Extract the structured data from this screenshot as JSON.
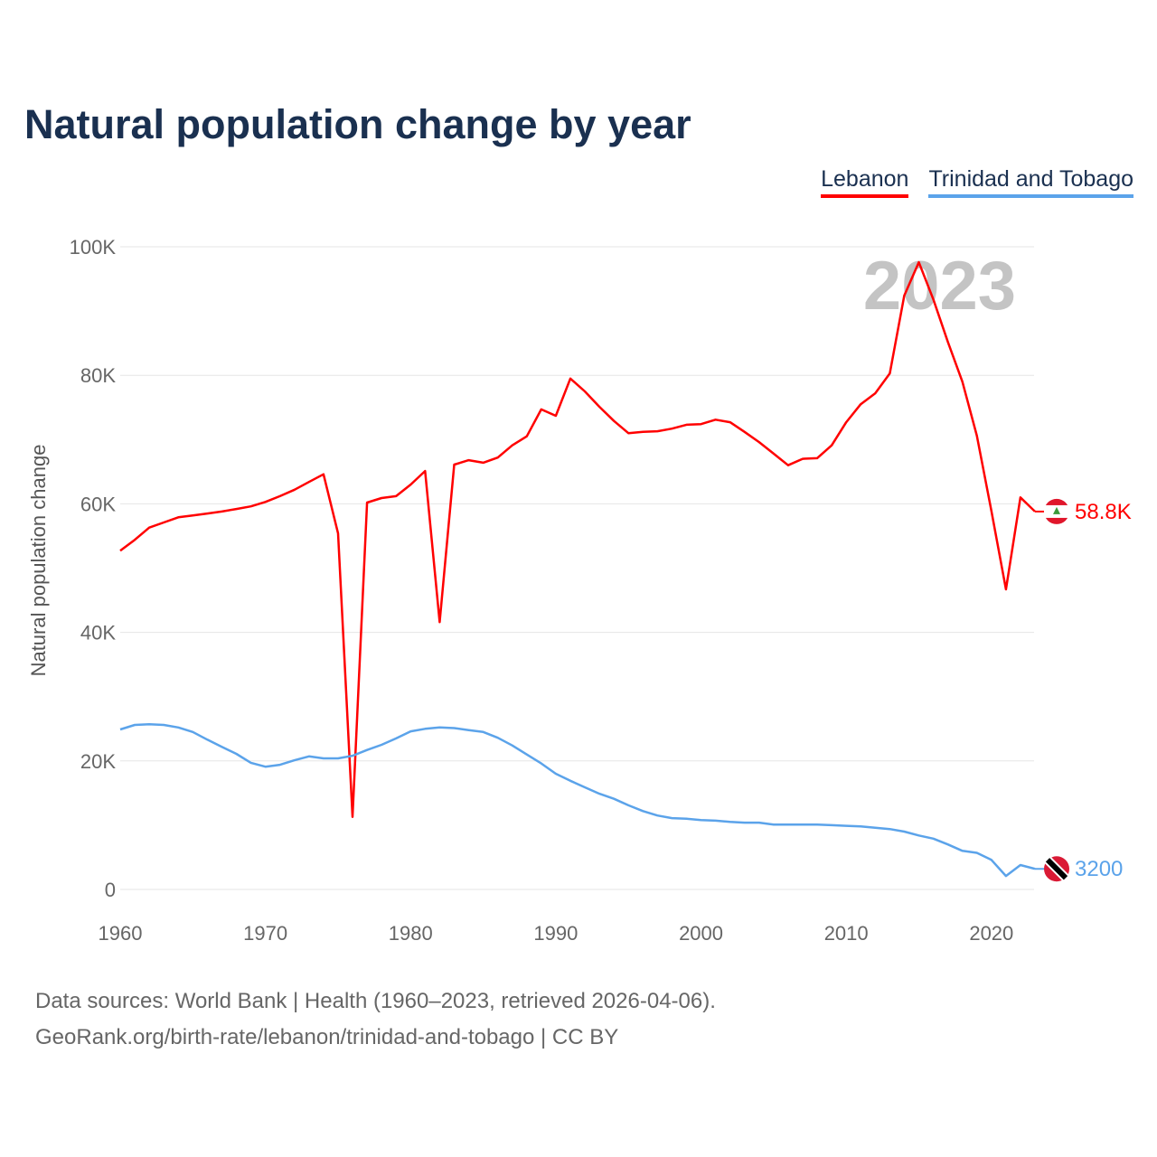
{
  "chart_data": {
    "type": "line",
    "title": "Natural population change by year",
    "ylabel": "Natural population change",
    "xlabel": "",
    "xlim": [
      1960,
      2023
    ],
    "ylim": [
      0,
      100000
    ],
    "xticks": [
      "1960",
      "1970",
      "1980",
      "1990",
      "2000",
      "2010",
      "2020"
    ],
    "yticks": [
      {
        "v": 0,
        "label": "0"
      },
      {
        "v": 20000,
        "label": "20K"
      },
      {
        "v": 40000,
        "label": "40K"
      },
      {
        "v": 60000,
        "label": "60K"
      },
      {
        "v": 80000,
        "label": "80K"
      },
      {
        "v": 100000,
        "label": "100K"
      }
    ],
    "grid": true,
    "legend_position": "top-right",
    "year_watermark": "2023",
    "x": [
      1960,
      1961,
      1962,
      1963,
      1964,
      1965,
      1966,
      1967,
      1968,
      1969,
      1970,
      1971,
      1972,
      1973,
      1974,
      1975,
      1976,
      1977,
      1978,
      1979,
      1980,
      1981,
      1982,
      1983,
      1984,
      1985,
      1986,
      1987,
      1988,
      1989,
      1990,
      1991,
      1992,
      1993,
      1994,
      1995,
      1996,
      1997,
      1998,
      1999,
      2000,
      2001,
      2002,
      2003,
      2004,
      2005,
      2006,
      2007,
      2008,
      2009,
      2010,
      2011,
      2012,
      2013,
      2014,
      2015,
      2016,
      2017,
      2018,
      2019,
      2020,
      2021,
      2022,
      2023
    ],
    "series": [
      {
        "name": "Lebanon",
        "color": "#ff0000",
        "end_label": "58.8K",
        "flag": "lebanon-flag",
        "values": [
          52700,
          54400,
          56300,
          57100,
          57900,
          58200,
          58500,
          58800,
          59200,
          59600,
          60300,
          61200,
          62200,
          63400,
          64600,
          55400,
          11300,
          60200,
          60900,
          61200,
          63000,
          65100,
          41600,
          66100,
          66800,
          66400,
          67200,
          69100,
          70500,
          74700,
          73700,
          79500,
          77500,
          75100,
          72900,
          71000,
          71200,
          71300,
          71700,
          72300,
          72400,
          73100,
          72700,
          71200,
          69600,
          67800,
          66000,
          67000,
          67100,
          69100,
          72700,
          75500,
          77200,
          80300,
          92400,
          97600,
          91800,
          85200,
          79000,
          70600,
          58900,
          46700,
          61000,
          58800
        ]
      },
      {
        "name": "Trinidad and Tobago",
        "color": "#5ba3ea",
        "end_label": "3200",
        "flag": "trinidad-flag",
        "values": [
          24900,
          25600,
          25700,
          25600,
          25200,
          24500,
          23300,
          22200,
          21100,
          19700,
          19100,
          19400,
          20100,
          20700,
          20400,
          20400,
          20800,
          21700,
          22500,
          23500,
          24600,
          25000,
          25200,
          25100,
          24800,
          24500,
          23600,
          22400,
          21000,
          19600,
          18000,
          16900,
          15900,
          14900,
          14100,
          13100,
          12200,
          11500,
          11100,
          11000,
          10800,
          10700,
          10500,
          10400,
          10400,
          10100,
          10100,
          10100,
          10100,
          10000,
          9900,
          9800,
          9600,
          9400,
          9000,
          8400,
          7900,
          7000,
          6000,
          5700,
          4600,
          2100,
          3800,
          3200
        ]
      }
    ]
  },
  "footer": {
    "line1": "Data sources: World Bank | Health (1960–2023, retrieved 2026-04-06).",
    "line2": "GeoRank.org/birth-rate/lebanon/trinidad-and-tobago | CC BY"
  }
}
